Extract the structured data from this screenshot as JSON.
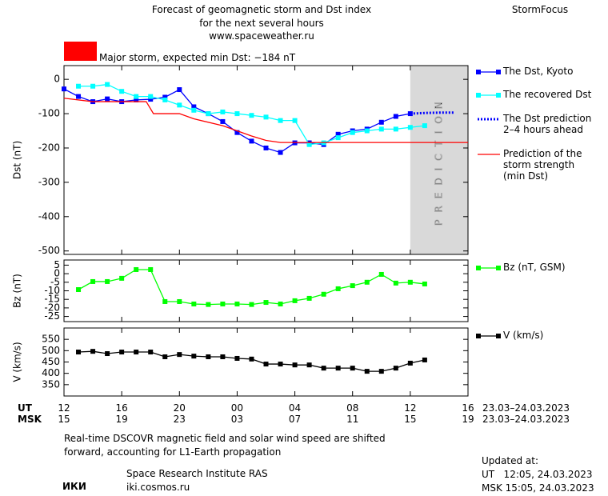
{
  "header": {
    "title_lines": [
      "Forecast of geomagnetic storm and Dst index",
      "for the next several hours",
      "www.spaceweather.ru"
    ],
    "brand": "StormFocus",
    "storm_label": "Major storm, expected min Dst: −184 nT",
    "storm_color": "#ff0000"
  },
  "x_axis": {
    "xlim": [
      0,
      28
    ],
    "xticks": [
      {
        "value": 0,
        "label": "12"
      },
      {
        "value": 4,
        "label": "16"
      },
      {
        "value": 8,
        "label": "20"
      },
      {
        "value": 12,
        "label": "00"
      },
      {
        "value": 16,
        "label": "04"
      },
      {
        "value": 20,
        "label": "08"
      },
      {
        "value": 24,
        "label": "12"
      },
      {
        "value": 28,
        "label": "16"
      }
    ],
    "xticks_msk": [
      {
        "value": 0,
        "label": "15"
      },
      {
        "value": 4,
        "label": "19"
      },
      {
        "value": 8,
        "label": "23"
      },
      {
        "value": 12,
        "label": "03"
      },
      {
        "value": 16,
        "label": "07"
      },
      {
        "value": 20,
        "label": "11"
      },
      {
        "value": 24,
        "label": "15"
      },
      {
        "value": 28,
        "label": "19"
      }
    ],
    "ut_label": "UT",
    "msk_label": "MSK",
    "date_label": "23.03–24.03.2023",
    "prediction_region": [
      24,
      28
    ],
    "prediction_label": "PREDICTION"
  },
  "chart_data": [
    {
      "type": "line",
      "ylabel": "Dst (nT)",
      "ylim": [
        -510,
        40
      ],
      "yticks": [
        0,
        -100,
        -200,
        -300,
        -400,
        -500
      ],
      "series": [
        {
          "name": "The Dst, Kyoto",
          "color": "#0000ff",
          "marker": "square",
          "linestyle": "solid",
          "x": [
            0,
            1,
            2,
            3,
            4,
            5,
            6,
            7,
            8,
            9,
            10,
            11,
            12,
            13,
            14,
            15,
            16,
            17,
            18,
            19,
            20,
            21,
            22,
            23,
            24
          ],
          "values": [
            -28,
            -50,
            -65,
            -57,
            -65,
            -60,
            -58,
            -52,
            -30,
            -80,
            -100,
            -123,
            -155,
            -180,
            -200,
            -213,
            -185,
            -185,
            -190,
            -160,
            -150,
            -145,
            -125,
            -108,
            -100
          ]
        },
        {
          "name": "The recovered Dst",
          "color": "#00ffff",
          "marker": "square",
          "linestyle": "solid",
          "x": [
            1,
            2,
            3,
            4,
            5,
            6,
            7,
            8,
            9,
            10,
            11,
            12,
            13,
            14,
            15,
            16,
            17,
            18,
            19,
            20,
            21,
            22,
            23,
            24,
            25
          ],
          "values": [
            -20,
            -20,
            -15,
            -35,
            -50,
            -50,
            -60,
            -75,
            -90,
            -100,
            -95,
            -100,
            -105,
            -110,
            -120,
            -120,
            -190,
            -185,
            -170,
            -155,
            -150,
            -145,
            -145,
            -140,
            -135
          ]
        },
        {
          "name": "The Dst prediction\n2–4 hours ahead",
          "color": "#0000ff",
          "marker": "none",
          "linestyle": "dotted",
          "x": [
            24,
            25,
            26,
            27
          ],
          "values": [
            -100,
            -98,
            -97,
            -97
          ]
        },
        {
          "name": "Prediction of the\nstorm strength\n(min Dst)",
          "color": "#ff0000",
          "marker": "none",
          "linestyle": "solid",
          "x": [
            0,
            2,
            5.7,
            6.2,
            8,
            9,
            11,
            13,
            14,
            15,
            28
          ],
          "values": [
            -55,
            -65,
            -65,
            -100,
            -100,
            -115,
            -135,
            -165,
            -178,
            -184,
            -184
          ]
        }
      ]
    },
    {
      "type": "line",
      "ylabel": "Bz (nT)",
      "ylim": [
        -28,
        8
      ],
      "yticks": [
        5,
        0,
        -5,
        -10,
        -15,
        -20,
        -25
      ],
      "series": [
        {
          "name": "Bz (nT, GSM)",
          "color": "#00ff00",
          "marker": "square",
          "linestyle": "solid",
          "x": [
            1,
            2,
            3,
            4,
            5,
            6,
            7,
            8,
            9,
            10,
            11,
            12,
            13,
            14,
            15,
            16,
            17,
            18,
            19,
            20,
            21,
            22,
            23,
            24,
            25
          ],
          "values": [
            -9.3,
            -4.6,
            -4.6,
            -2.7,
            2.4,
            2.4,
            -16.3,
            -16.3,
            -17.7,
            -18,
            -17.7,
            -17.7,
            -18,
            -16.8,
            -17.7,
            -15.8,
            -14.4,
            -12,
            -8.8,
            -7,
            -5,
            -0.4,
            -5.5,
            -5,
            -6
          ]
        }
      ]
    },
    {
      "type": "line",
      "ylabel": "V (km/s)",
      "ylim": [
        300,
        600
      ],
      "yticks": [
        550,
        500,
        450,
        400,
        350
      ],
      "series": [
        {
          "name": "V (km/s)",
          "color": "#000000",
          "marker": "square",
          "linestyle": "solid",
          "x": [
            1,
            2,
            3,
            4,
            5,
            6,
            7,
            8,
            9,
            10,
            11,
            12,
            13,
            14,
            15,
            16,
            17,
            18,
            19,
            20,
            21,
            22,
            23,
            24,
            25
          ],
          "values": [
            494,
            497,
            487,
            494,
            494,
            494,
            473,
            483,
            476,
            473,
            473,
            466,
            463,
            441,
            441,
            437,
            437,
            423,
            423,
            423,
            409,
            409,
            423,
            445,
            459
          ]
        }
      ]
    }
  ],
  "footer": {
    "note_lines": [
      "Real-time DSCOVR magnetic field and solar wind speed are shifted",
      "forward, accounting for L1-Earth propagation"
    ],
    "logo": "ИКИ",
    "institute": "Space Research Institute RAS",
    "site": "iki.cosmos.ru",
    "updated_title": "Updated at:",
    "updated_ut": "UT   12:05, 24.03.2023",
    "updated_msk": "MSK 15:05, 24.03.2023"
  }
}
